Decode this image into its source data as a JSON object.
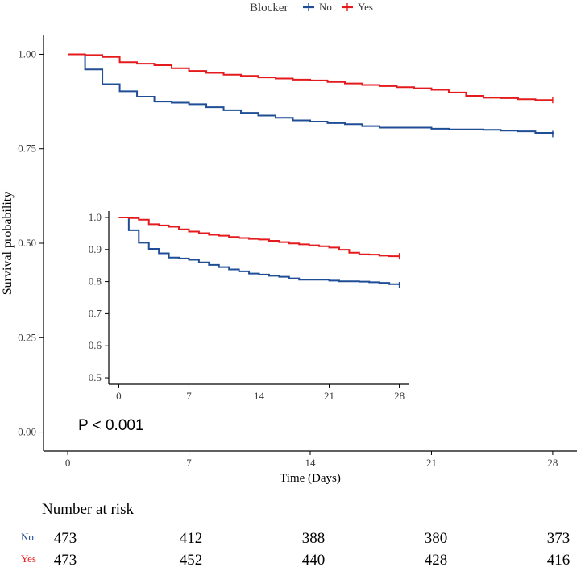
{
  "colors": {
    "no": "#1F4E96",
    "yes": "#E41A1C",
    "axis": "#000000",
    "text": "#3a3a3a"
  },
  "chart_data": {
    "type": "line",
    "subtype": "kaplan-meier",
    "legend": {
      "title": "Blocker",
      "position": "top",
      "entries": [
        "No",
        "Yes"
      ]
    },
    "xlabel": "Time (Days)",
    "ylabel": "Survival probability",
    "xlim": [
      -1.4,
      29.4
    ],
    "ylim": [
      -0.05,
      1.05
    ],
    "xticks": [
      0,
      7,
      14,
      21,
      28
    ],
    "xtick_labels": [
      "0",
      "7",
      "14",
      "21",
      "28"
    ],
    "yticks": [
      0,
      0.25,
      0.5,
      0.75,
      1.0
    ],
    "ytick_labels": [
      "0.00",
      "0.25",
      "0.50",
      "0.75",
      "1.00"
    ],
    "annotation": "P < 0.001",
    "series": [
      {
        "name": "No",
        "x": [
          0,
          1,
          2,
          3,
          4,
          5,
          6,
          7,
          8,
          9,
          10,
          11,
          12,
          13,
          14,
          15,
          16,
          17,
          18,
          21,
          22,
          24,
          25,
          26,
          27,
          28
        ],
        "y": [
          1.0,
          0.96,
          0.921,
          0.902,
          0.888,
          0.875,
          0.872,
          0.868,
          0.86,
          0.852,
          0.845,
          0.838,
          0.832,
          0.825,
          0.822,
          0.818,
          0.815,
          0.81,
          0.806,
          0.803,
          0.801,
          0.8,
          0.798,
          0.796,
          0.792,
          0.789
        ]
      },
      {
        "name": "Yes",
        "x": [
          0,
          1,
          2,
          3,
          4,
          5,
          6,
          7,
          8,
          9,
          10,
          11,
          12,
          13,
          14,
          15,
          16,
          17,
          18,
          19,
          20,
          21,
          22,
          23,
          24,
          25,
          26,
          27,
          28
        ],
        "y": [
          1.0,
          0.998,
          0.993,
          0.979,
          0.975,
          0.971,
          0.963,
          0.956,
          0.951,
          0.946,
          0.943,
          0.939,
          0.936,
          0.933,
          0.931,
          0.927,
          0.923,
          0.919,
          0.916,
          0.913,
          0.91,
          0.906,
          0.899,
          0.89,
          0.885,
          0.884,
          0.881,
          0.879,
          0.879
        ]
      }
    ],
    "inset": {
      "xlim": [
        -1,
        29
      ],
      "ylim": [
        0.48,
        1.02
      ],
      "xticks": [
        0,
        7,
        14,
        21,
        28
      ],
      "xtick_labels": [
        "0",
        "7",
        "14",
        "21",
        "28"
      ],
      "yticks": [
        0.5,
        0.6,
        0.7,
        0.8,
        0.9,
        1.0
      ],
      "ytick_labels": [
        "0.5",
        "0.6",
        "0.7",
        "0.8",
        "0.9",
        "1.0"
      ]
    },
    "risk_table": {
      "title": "Number at risk",
      "times": [
        0,
        7,
        14,
        21,
        28
      ],
      "rows": [
        {
          "label": "No",
          "counts": [
            "473",
            "412",
            "388",
            "380",
            "373"
          ]
        },
        {
          "label": "Yes",
          "counts": [
            "473",
            "452",
            "440",
            "428",
            "416"
          ]
        }
      ]
    }
  }
}
